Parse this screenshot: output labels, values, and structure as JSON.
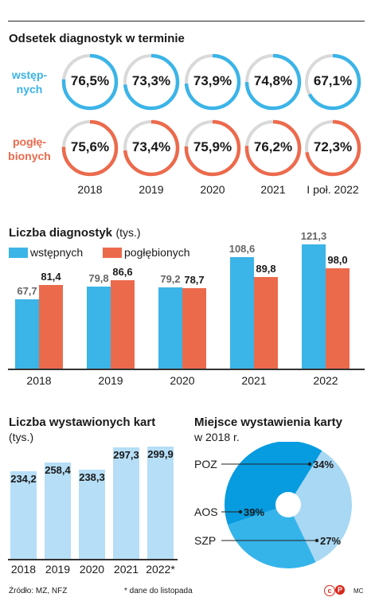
{
  "colors": {
    "blue": "#3bb4e8",
    "orange": "#ec6a4c",
    "light_blue": "#b6def6",
    "pie_light": "#a8d8f3",
    "pie_mid": "#079be0",
    "pie_blue": "#35b4ea",
    "axis": "#333333",
    "grey_label": "#666666",
    "line": "#222222"
  },
  "section1": {
    "title": "Odsetek diagnostyk w terminie",
    "row1_label_a": "wstęp-",
    "row1_label_b": "nych",
    "row2_label_a": "pogłę-",
    "row2_label_b": "bionych"
  },
  "source": {
    "text": "Źródło: MZ, NFZ",
    "footnote": "* dane do listopada",
    "credit": "MC"
  },
  "chart_data": [
    {
      "type": "table",
      "title": "Odsetek diagnostyk w terminie",
      "years": [
        "2018",
        "2019",
        "2020",
        "2021",
        "I poł. 2022"
      ],
      "series": [
        {
          "name": "wstępnych",
          "labels": [
            "76,5%",
            "73,3%",
            "73,9%",
            "74,8%",
            "67,1%"
          ],
          "values": [
            76.5,
            73.3,
            73.9,
            74.8,
            67.1
          ]
        },
        {
          "name": "pogłębionych",
          "labels": [
            "75,6%",
            "73,4%",
            "75,9%",
            "76,2%",
            "72,3%"
          ],
          "values": [
            75.6,
            73.4,
            75.9,
            76.2,
            72.3
          ]
        }
      ]
    },
    {
      "type": "bar",
      "title": "Liczba diagnostyk",
      "unit": "(tys.)",
      "categories": [
        "2018",
        "2019",
        "2020",
        "2021",
        "2022"
      ],
      "series": [
        {
          "name": "wstępnych",
          "values": [
            67.7,
            79.8,
            79.2,
            108.6,
            121.3
          ],
          "labels": [
            "67,7",
            "79,8",
            "79,2",
            "108,6",
            "121,3"
          ]
        },
        {
          "name": "pogłębionych",
          "values": [
            81.4,
            86.6,
            78.7,
            89.8,
            98.0
          ],
          "labels": [
            "81,4",
            "86,6",
            "78,7",
            "89,8",
            "98,0"
          ]
        }
      ],
      "legend": "top-left",
      "ylim": [
        0,
        125
      ]
    },
    {
      "type": "bar",
      "title": "Liczba wystawionych kart",
      "unit": "(tys.)",
      "categories": [
        "2018",
        "2019",
        "2020",
        "2021",
        "2022*"
      ],
      "values": [
        234.2,
        258.4,
        238.3,
        297.3,
        299.9
      ],
      "labels": [
        "234,2",
        "258,4",
        "238,3",
        "297,3",
        "299,9"
      ],
      "ylim": [
        0,
        300
      ]
    },
    {
      "type": "pie",
      "title": "Miejsce wystawienia karty",
      "subtitle": "w 2018 r.",
      "slices": [
        {
          "name": "POZ",
          "value": 34,
          "label": "34%"
        },
        {
          "name": "SZP",
          "value": 27,
          "label": "27%"
        },
        {
          "name": "AOS",
          "value": 39,
          "label": "39%"
        }
      ]
    }
  ]
}
